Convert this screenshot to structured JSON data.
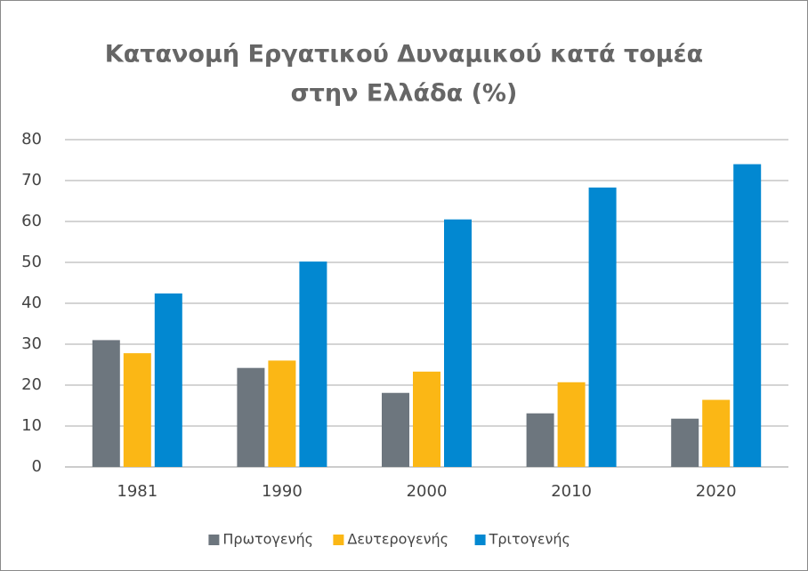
{
  "chart_data": {
    "type": "bar",
    "title": [
      "Κατανομή Εργατικού Δυναμικού κατά τομέα",
      "στην Ελλάδα (%)"
    ],
    "categories": [
      "1981",
      "1990",
      "2000",
      "2010",
      "2020"
    ],
    "series": [
      {
        "name": "Πρωτογενής",
        "color": "#6d767e",
        "values": [
          31.0,
          24.2,
          18.1,
          13.1,
          11.8
        ]
      },
      {
        "name": "Δευτερογενής",
        "color": "#fbb715",
        "values": [
          27.8,
          26.0,
          23.3,
          20.7,
          16.4
        ]
      },
      {
        "name": "Τριτογενής",
        "color": "#0288d1",
        "values": [
          42.4,
          50.2,
          60.5,
          68.3,
          74.0
        ]
      }
    ],
    "ylim": [
      0,
      80
    ],
    "yticks": [
      0,
      10,
      20,
      30,
      40,
      50,
      60,
      70,
      80
    ],
    "grid": true,
    "legend": "bottom"
  }
}
